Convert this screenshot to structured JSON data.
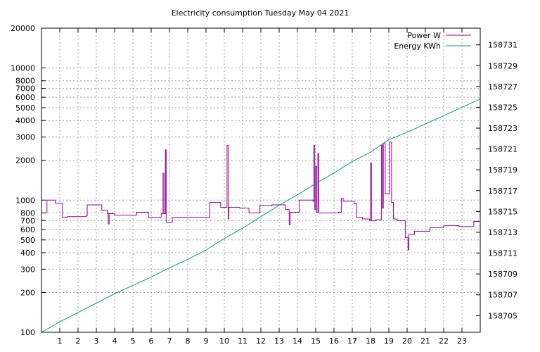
{
  "chart_data": {
    "type": "line",
    "title": "Electricity consumption Tuesday May 04 2021",
    "xlim": [
      0,
      24
    ],
    "x_ticks": [
      1,
      2,
      3,
      4,
      5,
      6,
      7,
      8,
      9,
      10,
      11,
      12,
      13,
      14,
      15,
      16,
      17,
      18,
      19,
      20,
      21,
      22,
      23
    ],
    "y_left": {
      "scale": "log",
      "ylim": [
        100,
        20000
      ],
      "ticks": [
        100,
        200,
        300,
        400,
        500,
        600,
        700,
        800,
        1000,
        2000,
        3000,
        4000,
        5000,
        6000,
        7000,
        8000,
        10000,
        20000
      ]
    },
    "y_right": {
      "scale": "linear",
      "ylim": [
        158703.4,
        158732.6
      ],
      "ticks": [
        158705,
        158707,
        158709,
        158711,
        158713,
        158715,
        158717,
        158719,
        158721,
        158723,
        158725,
        158727,
        158729,
        158731
      ]
    },
    "grid": true,
    "legend_position": "top-right",
    "series": [
      {
        "name": "Power W",
        "axis": "left",
        "color": "#94009b",
        "style": "step",
        "points": [
          [
            0,
            800
          ],
          [
            0.3,
            1000
          ],
          [
            0.75,
            950
          ],
          [
            1.15,
            740
          ],
          [
            1.4,
            750
          ],
          [
            2.45,
            760
          ],
          [
            2.5,
            920
          ],
          [
            3.3,
            840
          ],
          [
            3.6,
            790
          ],
          [
            3.65,
            660
          ],
          [
            3.7,
            790
          ],
          [
            4.0,
            770
          ],
          [
            5.2,
            810
          ],
          [
            5.85,
            740
          ],
          [
            6.55,
            790
          ],
          [
            6.65,
            1600
          ],
          [
            6.7,
            790
          ],
          [
            6.78,
            2400
          ],
          [
            6.82,
            680
          ],
          [
            7.15,
            740
          ],
          [
            9.2,
            960
          ],
          [
            9.8,
            880
          ],
          [
            10.15,
            2600
          ],
          [
            10.22,
            720
          ],
          [
            10.25,
            880
          ],
          [
            10.85,
            870
          ],
          [
            11.35,
            800
          ],
          [
            11.95,
            910
          ],
          [
            12.6,
            920
          ],
          [
            13.35,
            850
          ],
          [
            13.55,
            650
          ],
          [
            13.6,
            810
          ],
          [
            14.1,
            1000
          ],
          [
            14.85,
            980
          ],
          [
            14.9,
            2600
          ],
          [
            14.95,
            850
          ],
          [
            15.0,
            1800
          ],
          [
            15.05,
            810
          ],
          [
            15.12,
            2250
          ],
          [
            15.17,
            800
          ],
          [
            16.25,
            810
          ],
          [
            16.4,
            1030
          ],
          [
            16.5,
            980
          ],
          [
            17.1,
            940
          ],
          [
            17.25,
            740
          ],
          [
            17.55,
            720
          ],
          [
            17.95,
            700
          ],
          [
            18.0,
            1900
          ],
          [
            18.05,
            700
          ],
          [
            18.3,
            710
          ],
          [
            18.6,
            2600
          ],
          [
            18.65,
            870
          ],
          [
            18.7,
            2700
          ],
          [
            18.8,
            1120
          ],
          [
            19.05,
            2750
          ],
          [
            19.15,
            960
          ],
          [
            19.25,
            720
          ],
          [
            19.45,
            700
          ],
          [
            19.9,
            520
          ],
          [
            20.05,
            420
          ],
          [
            20.1,
            550
          ],
          [
            20.4,
            580
          ],
          [
            21.25,
            620
          ],
          [
            22.0,
            640
          ],
          [
            22.85,
            630
          ],
          [
            23.65,
            690
          ],
          [
            24.0,
            690
          ]
        ]
      },
      {
        "name": "Energy KWh",
        "axis": "right",
        "color": "#009e73",
        "style": "line",
        "points": [
          [
            0,
            158703.4
          ],
          [
            1,
            158704.4
          ],
          [
            2,
            158705.3
          ],
          [
            3,
            158706.2
          ],
          [
            4,
            158707.1
          ],
          [
            5,
            158707.9
          ],
          [
            6,
            158708.7
          ],
          [
            7,
            158709.6
          ],
          [
            8,
            158710.4
          ],
          [
            9,
            158711.3
          ],
          [
            10,
            158712.4
          ],
          [
            11,
            158713.4
          ],
          [
            12,
            158714.5
          ],
          [
            13,
            158715.6
          ],
          [
            14,
            158716.6
          ],
          [
            15,
            158717.7
          ],
          [
            16,
            158718.7
          ],
          [
            17,
            158719.8
          ],
          [
            18,
            158720.7
          ],
          [
            19,
            158721.9
          ],
          [
            20,
            158722.6
          ],
          [
            21,
            158723.4
          ],
          [
            22,
            158724.2
          ],
          [
            23,
            158725.0
          ],
          [
            24,
            158725.8
          ]
        ]
      }
    ]
  }
}
